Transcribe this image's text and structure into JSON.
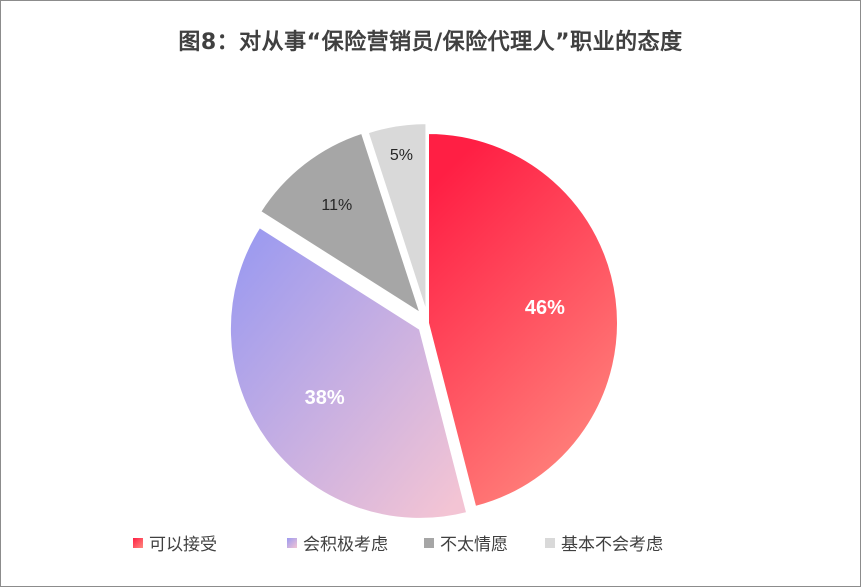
{
  "chart_data": {
    "type": "pie",
    "title": "图8：对从事“保险营销员/保险代理人”职业的态度",
    "slices": [
      {
        "name": "可以接受",
        "value": 46,
        "label": "46%",
        "color_start": "#ff1f44",
        "color_end": "#ff8a80"
      },
      {
        "name": "会积极考虑",
        "value": 38,
        "label": "38%",
        "color_start": "#9b9af0",
        "color_end": "#f3c4d4"
      },
      {
        "name": "不太情愿",
        "value": 11,
        "label": "11%",
        "color_start": "#a6a6a6",
        "color_end": "#a6a6a6"
      },
      {
        "name": "基本不会考虑",
        "value": 5,
        "label": "5%",
        "color_start": "#d9d9d9",
        "color_end": "#d9d9d9"
      }
    ],
    "legend_position": "bottom"
  }
}
